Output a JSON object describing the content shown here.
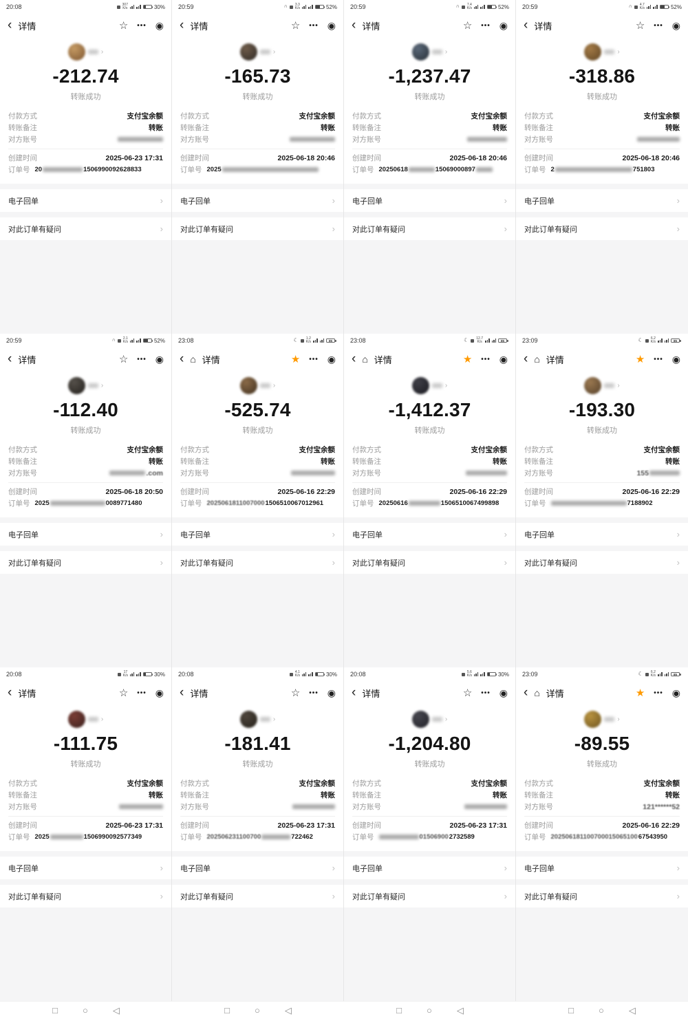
{
  "common": {
    "title": "详情",
    "result": "转账成功",
    "payment_label": "付款方式",
    "payment_value": "支付宝余额",
    "note_label": "转账备注",
    "note_value": "转账",
    "account_label": "对方账号",
    "created_label": "创建时间",
    "order_label": "订单号",
    "receipt_link": "电子回单",
    "question_link": "对此订单有疑问",
    "speed_unit": "K/s"
  },
  "icons": {
    "back": "‹",
    "home": "⌂",
    "star_on": "★",
    "star_off": "☆",
    "more": "•••",
    "target": "◉",
    "chevron": "›",
    "moon": "☾",
    "headset": "∩",
    "nav_square": "□",
    "nav_circle": "○",
    "nav_back": "◁"
  },
  "colors": {
    "star_accent": "#ff9a00",
    "page_gray": "#f5f5f6"
  },
  "cells": [
    {
      "time": "20:08",
      "speed": "307",
      "night": false,
      "headset": false,
      "battery": "30%",
      "battery_inner": "",
      "battery_level": 30,
      "starred": false,
      "home": false,
      "avatar": [
        "#c59a63",
        "#7c5530"
      ],
      "amount": "-212.74",
      "created": "2025-06-23 17:31",
      "account": [
        [
          "b",
          66
        ]
      ],
      "order": [
        [
          "t",
          "20"
        ],
        [
          "b",
          58
        ],
        [
          "t",
          "1506990092628833"
        ]
      ]
    },
    {
      "time": "20:59",
      "speed": "3.3",
      "night": false,
      "headset": true,
      "battery": "52%",
      "battery_inner": "",
      "battery_level": 52,
      "starred": false,
      "home": false,
      "avatar": [
        "#6e5b49",
        "#2e2a26"
      ],
      "amount": "-165.73",
      "created": "2025-06-18 20:46",
      "account": [
        [
          "b",
          66
        ]
      ],
      "order": [
        [
          "t",
          "2025"
        ],
        [
          "b",
          140
        ]
      ]
    },
    {
      "time": "20:59",
      "speed": "7.4",
      "night": false,
      "headset": true,
      "battery": "52%",
      "battery_inner": "",
      "battery_level": 52,
      "starred": false,
      "home": false,
      "avatar": [
        "#5a6878",
        "#262e36"
      ],
      "amount": "-1,237.47",
      "created": "2025-06-18 20:46",
      "account": [
        [
          "b",
          58
        ]
      ],
      "order": [
        [
          "t",
          "20250618"
        ],
        [
          "b",
          38
        ],
        [
          "t",
          "15069000897"
        ],
        [
          "b",
          24
        ]
      ]
    },
    {
      "time": "20:59",
      "speed": "4.7",
      "night": false,
      "headset": true,
      "battery": "52%",
      "battery_inner": "",
      "battery_level": 52,
      "starred": false,
      "home": false,
      "avatar": [
        "#a37a46",
        "#5f4524"
      ],
      "amount": "-318.86",
      "created": "2025-06-18 20:46",
      "account": [
        [
          "b",
          62
        ]
      ],
      "order": [
        [
          "t",
          "2"
        ],
        [
          "b",
          112
        ],
        [
          "t",
          "751803"
        ]
      ]
    },
    {
      "time": "20:59",
      "speed": "2.1",
      "night": false,
      "headset": true,
      "battery": "52%",
      "battery_inner": "",
      "battery_level": 52,
      "starred": false,
      "home": false,
      "avatar": [
        "#55504a",
        "#221f1c"
      ],
      "amount": "-112.40",
      "created": "2025-06-18 20:50",
      "account": [
        [
          "b",
          52
        ],
        [
          "f",
          ".com"
        ]
      ],
      "order": [
        [
          "t",
          "2025"
        ],
        [
          "b",
          80
        ],
        [
          "t",
          "0089771480"
        ]
      ]
    },
    {
      "time": "23:08",
      "speed": "1.2",
      "night": true,
      "headset": false,
      "battery": "",
      "battery_inner": "85",
      "battery_level": 85,
      "starred": true,
      "home": true,
      "avatar": [
        "#8a6a48",
        "#40301e"
      ],
      "amount": "-525.74",
      "created": "2025-06-16 22:29",
      "account": [
        [
          "b",
          64
        ]
      ],
      "order": [
        [
          "f",
          "2025061811007000"
        ],
        [
          "t",
          "1506510067012961"
        ]
      ]
    },
    {
      "time": "23:08",
      "speed": "12.7",
      "night": true,
      "headset": false,
      "battery": "",
      "battery_inner": "85",
      "battery_level": 85,
      "starred": true,
      "home": true,
      "avatar": [
        "#3e3e46",
        "#1a1a20"
      ],
      "amount": "-1,412.37",
      "created": "2025-06-16 22:29",
      "account": [
        [
          "b",
          60
        ]
      ],
      "order": [
        [
          "t",
          "20250616"
        ],
        [
          "b",
          46
        ],
        [
          "t",
          "1506510067499898"
        ]
      ]
    },
    {
      "time": "23:09",
      "speed": "6.2",
      "night": true,
      "headset": false,
      "battery": "",
      "battery_inner": "85",
      "battery_level": 85,
      "starred": true,
      "home": true,
      "avatar": [
        "#9a7850",
        "#55402a"
      ],
      "amount": "-193.30",
      "created": "2025-06-16 22:29",
      "account": [
        [
          "f",
          "155"
        ],
        [
          "b",
          44
        ]
      ],
      "order": [
        [
          "b",
          110
        ],
        [
          "t",
          "7188902"
        ]
      ]
    },
    {
      "time": "20:08",
      "speed": "17",
      "night": false,
      "headset": false,
      "battery": "30%",
      "battery_inner": "",
      "battery_level": 30,
      "starred": false,
      "home": false,
      "avatar": [
        "#7a3c34",
        "#39211e"
      ],
      "amount": "-111.75",
      "created": "2025-06-23 17:31",
      "account": [
        [
          "b",
          64
        ]
      ],
      "order": [
        [
          "t",
          "2025"
        ],
        [
          "b",
          48
        ],
        [
          "t",
          "1506990092577349"
        ]
      ]
    },
    {
      "time": "20:08",
      "speed": "4.1",
      "night": false,
      "headset": false,
      "battery": "30%",
      "battery_inner": "",
      "battery_level": 30,
      "starred": false,
      "home": false,
      "avatar": [
        "#4e453c",
        "#242019"
      ],
      "amount": "-181.41",
      "created": "2025-06-23 17:31",
      "account": [
        [
          "b",
          62
        ]
      ],
      "order": [
        [
          "f",
          "202506231100700"
        ],
        [
          "b",
          42
        ],
        [
          "t",
          "722462"
        ]
      ]
    },
    {
      "time": "20:08",
      "speed": "5.6",
      "night": false,
      "headset": false,
      "battery": "30%",
      "battery_inner": "",
      "battery_level": 30,
      "starred": false,
      "home": false,
      "avatar": [
        "#46464e",
        "#222228"
      ],
      "amount": "-1,204.80",
      "created": "2025-06-23 17:31",
      "account": [
        [
          "b",
          62
        ]
      ],
      "order": [
        [
          "b",
          58
        ],
        [
          "f",
          "01506900"
        ],
        [
          "t",
          "2732589"
        ]
      ]
    },
    {
      "time": "23:09",
      "speed": "6.2",
      "night": true,
      "headset": false,
      "battery": "",
      "battery_inner": "85",
      "battery_level": 85,
      "starred": true,
      "home": true,
      "avatar": [
        "#b8923f",
        "#6d5520"
      ],
      "amount": "-89.55",
      "created": "2025-06-16 22:29",
      "account": [
        [
          "f",
          "121******52"
        ]
      ],
      "order": [
        [
          "f",
          "202506181100700015065100"
        ],
        [
          "t",
          "67543950"
        ]
      ]
    }
  ],
  "bottom_nav": {
    "groups": 4
  }
}
